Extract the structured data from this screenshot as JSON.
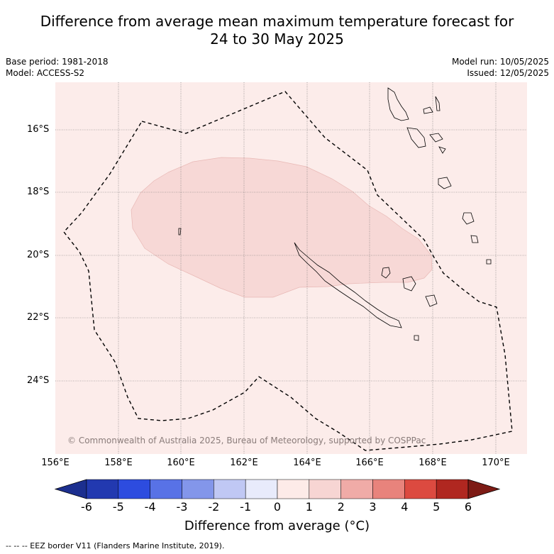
{
  "title_line1": "Difference from average mean maximum temperature forecast for",
  "title_line2": "24 to 30 May 2025",
  "base_period": "Base period: 1981-2018",
  "model": "Model: ACCESS-S2",
  "model_run": "Model run: 10/05/2025",
  "issued": "Issued: 12/05/2025",
  "copyright": "© Commonwealth of Australia 2025, Bureau of Meteorology, supported by COSPPac",
  "lat_ticks": [
    "16°S",
    "18°S",
    "20°S",
    "22°S",
    "24°S"
  ],
  "lon_ticks": [
    "156°E",
    "158°E",
    "160°E",
    "162°E",
    "164°E",
    "166°E",
    "168°E",
    "170°E"
  ],
  "colorbar": {
    "title": "Difference from average (°C)",
    "labels": [
      "-6",
      "-5",
      "-4",
      "-3",
      "-2",
      "-1",
      "0",
      "1",
      "2",
      "3",
      "4",
      "5",
      "6"
    ],
    "colors": [
      "#1c2f8f",
      "#2239b0",
      "#2d4cdf",
      "#5872e6",
      "#8396ea",
      "#c0c8f4",
      "#e8ebfb",
      "#fdebe8",
      "#f7d5d3",
      "#f0aba7",
      "#e8837c",
      "#dc4a40",
      "#b02720",
      "#7d1b15"
    ]
  },
  "map_colors": {
    "background_anomaly": "#fcecea",
    "warm_anomaly": "#f7d8d6"
  },
  "footnote": "--  --  -- EEZ border V11 (Flanders Marine Institute, 2019)."
}
